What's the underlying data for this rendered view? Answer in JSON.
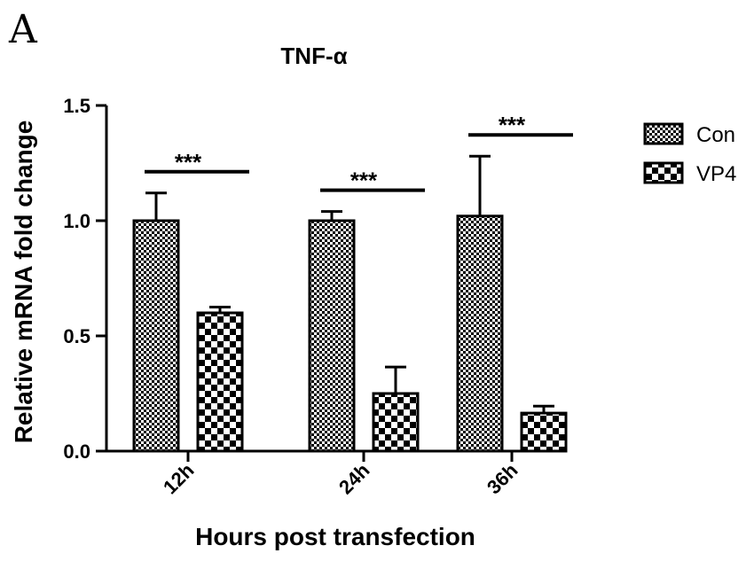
{
  "panel_label": "A",
  "chart_data": {
    "type": "bar",
    "title": "TNF-α",
    "xlabel": "Hours post transfection",
    "ylabel": "Relative mRNA fold change",
    "categories": [
      "12h",
      "24h",
      "36h"
    ],
    "ylim": [
      0,
      1.5
    ],
    "yticks": [
      "0.0",
      "0.5",
      "1.0",
      "1.5"
    ],
    "series": [
      {
        "name": "Con",
        "values": [
          1.0,
          1.0,
          1.02
        ],
        "errors": [
          0.12,
          0.04,
          0.26
        ],
        "pattern": "fine-check"
      },
      {
        "name": "VP4",
        "values": [
          0.6,
          0.25,
          0.165
        ],
        "errors": [
          0.025,
          0.115,
          0.03
        ],
        "pattern": "coarse-check"
      }
    ],
    "significance": [
      "***",
      "***",
      "***"
    ],
    "legend_position": "top-right",
    "grid": false
  }
}
